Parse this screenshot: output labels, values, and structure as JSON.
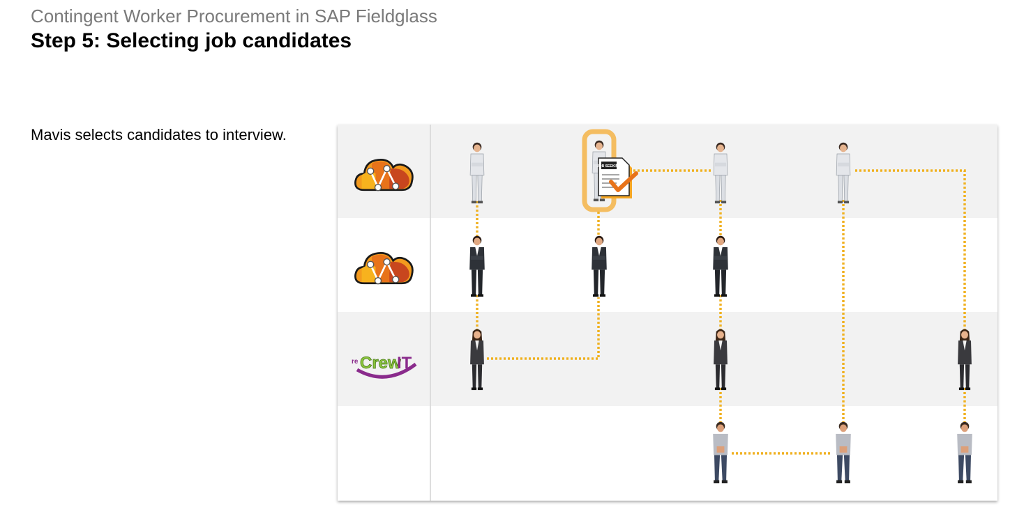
{
  "header": {
    "subtitle": "Contingent Worker Procurement in SAP Fieldglass",
    "title": "Step 5: Selecting job candidates"
  },
  "main": {
    "description": "Mavis selects candidates to interview."
  },
  "diagram": {
    "rows": [
      {
        "logo": "orange-network-cloud-logo"
      },
      {
        "logo": "orange-network-cloud-logo"
      },
      {
        "logo": "recrewit-logo",
        "logo_text": "re Crew IT"
      },
      {
        "logo": ""
      }
    ],
    "document_icon_text": "JOB SEEKING",
    "colors": {
      "row_shade": "#f2f2f2",
      "connector": "#f0b120",
      "highlight": "#f5a623",
      "check": "#e8731a"
    }
  }
}
